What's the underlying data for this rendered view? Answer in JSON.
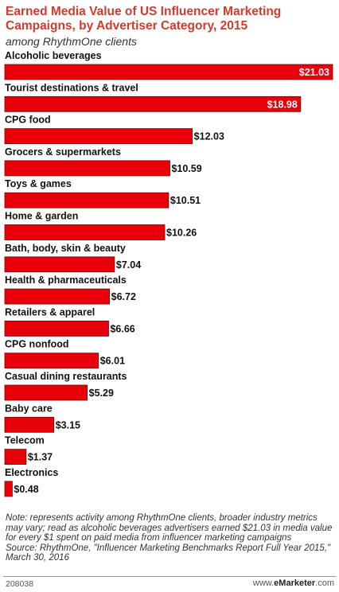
{
  "title": "Earned Media Value of US Influencer Marketing Campaigns, by Advertiser Category, 2015",
  "subtitle": "among RhythmOne clients",
  "chart_data": {
    "type": "bar",
    "orientation": "horizontal",
    "categories": [
      "Alcoholic beverages",
      "Tourist destinations & travel",
      "CPG food",
      "Grocers & supermarkets",
      "Toys & games",
      "Home & garden",
      "Bath, body, skin & beauty",
      "Health & pharmaceuticals",
      "Retailers & apparel",
      "CPG nonfood",
      "Casual dining restaurants",
      "Baby care",
      "Telecom",
      "Electronics"
    ],
    "values": [
      21.03,
      18.98,
      12.03,
      10.59,
      10.51,
      10.26,
      7.04,
      6.72,
      6.66,
      6.01,
      5.29,
      3.15,
      1.37,
      0.48
    ],
    "value_labels": [
      "$21.03",
      "$18.98",
      "$12.03",
      "$10.59",
      "$10.51",
      "$10.26",
      "$7.04",
      "$6.72",
      "$6.66",
      "$6.01",
      "$5.29",
      "$3.15",
      "$1.37",
      "$0.48"
    ],
    "xlim": [
      0,
      21.03
    ],
    "grid": false,
    "legend": "none",
    "colors": {
      "bar": "#e8000b",
      "bar_edge": "#7a0000",
      "label_inside": "#ffffff",
      "label_outside": "#111111"
    }
  },
  "note": {
    "note_text": "Note: represents activity among RhythmOne clients, broader industry metrics may vary; read as alcoholic beverages advertisers earned $21.03 in media value for every $1 spent on paid media from influencer marketing campaigns",
    "source_text": "Source: RhythmOne, \"Influencer Marketing Benchmarks Report Full Year 2015,\" March 30, 2016"
  },
  "footer": {
    "id": "208038",
    "brand_prefix": "www.",
    "brand_name": "eMarketer",
    "brand_suffix": ".com"
  }
}
